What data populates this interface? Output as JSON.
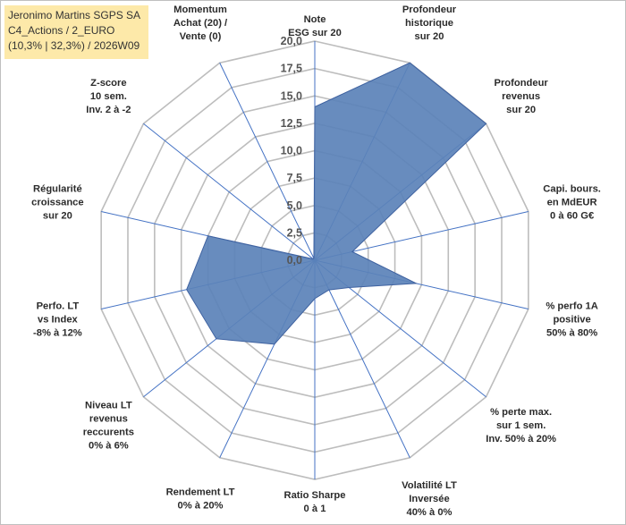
{
  "header": {
    "line1": "Jeronimo Martins SGPS SA",
    "line2": "C4_Actions / 2_EURO",
    "line3": "(10,3% | 32,3%) / 2026W09"
  },
  "colors": {
    "fill": "#5b82b8",
    "stroke": "#3f62a0",
    "grid": "#bdbdbd",
    "spoke": "#4472c4",
    "title_bg": "#fde9a9"
  },
  "chart_data": {
    "type": "radar",
    "rmin": 0,
    "rmax": 20,
    "tick_step": 2.5,
    "tick_labels": [
      "0,0",
      "2,5",
      "5,0",
      "7,5",
      "10,0",
      "12,5",
      "15,0",
      "17,5",
      "20,0"
    ],
    "categories": [
      [
        "Note",
        "ESG sur 20"
      ],
      [
        "Profondeur",
        "historique",
        "sur 20"
      ],
      [
        "Profondeur",
        "revenus",
        "sur 20"
      ],
      [
        "Capi. bours.",
        "en MdEUR",
        "0 à 60 G€"
      ],
      [
        "% perfo 1A",
        "positive",
        "50% à 80%"
      ],
      [
        "% perte max.",
        "sur 1 sem.",
        "Inv. 50% à 20%"
      ],
      [
        "Volatilité LT",
        "Inversée",
        "40% à 0%"
      ],
      [
        "Ratio Sharpe",
        "0 à 1"
      ],
      [
        "Rendement LT",
        "0% à 20%"
      ],
      [
        "Niveau LT",
        "revenus",
        "reccurents",
        "0% à 6%"
      ],
      [
        "Perfo. LT",
        "vs Index",
        "-8% à 12%"
      ],
      [
        "Régularité",
        "croissance",
        "sur 20"
      ],
      [
        "Z-score",
        "10 sem.",
        "Inv. 2 à -2"
      ],
      [
        "Momentum",
        "Achat (20) /",
        "Vente (0)"
      ]
    ],
    "series": [
      {
        "values": [
          14,
          20,
          20,
          3.5,
          9.5,
          4,
          3,
          3.5,
          8.5,
          11.5,
          12,
          10,
          0.2,
          0.2
        ]
      }
    ],
    "grid": true
  }
}
